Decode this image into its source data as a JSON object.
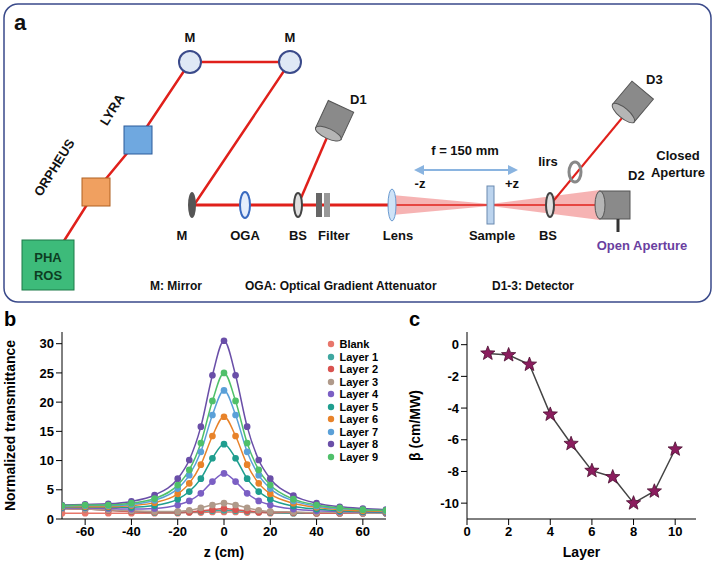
{
  "diagram": {
    "panel": "a",
    "pharos": [
      "PHA",
      "ROS"
    ],
    "orpheus": "ORPHEUS",
    "lyra": "LYRA",
    "mirrors": [
      "M",
      "M",
      "M"
    ],
    "oga": "OGA",
    "splitters": [
      "BS",
      "BS"
    ],
    "filter": "Filter",
    "lens": "Lens",
    "sample": "Sample",
    "iris": "Iirs",
    "detectors": [
      "D1",
      "D2",
      "D3"
    ],
    "focal": "f = 150 mm",
    "minus_z": "-z",
    "plus_z": "+z",
    "closed": [
      "Closed",
      "Aperture"
    ],
    "open": "Open Aperture",
    "key": [
      "M: Mirror",
      "OGA: Optical Gradient Attenuator",
      "D1-3: Detector"
    ]
  },
  "chart_data": [
    {
      "type": "line",
      "panel": "b",
      "x": [
        -70,
        -60,
        -50,
        -40,
        -30,
        -20,
        -15,
        -10,
        -5,
        0,
        5,
        10,
        15,
        20,
        30,
        40,
        50,
        60,
        70
      ],
      "series": [
        {
          "name": "Blank",
          "color": "#e8766b",
          "values": [
            1.0,
            1.0,
            1.0,
            1.0,
            1.0,
            1.0,
            1.1,
            1.1,
            1.2,
            1.2,
            1.2,
            1.1,
            1.1,
            1.0,
            1.0,
            1.0,
            1.0,
            1.0,
            1.0
          ]
        },
        {
          "name": "Layer 1",
          "color": "#3fa7a0",
          "values": [
            1.8,
            1.7,
            1.5,
            1.3,
            1.1,
            1.1,
            1.2,
            1.3,
            1.4,
            1.5,
            1.4,
            1.3,
            1.2,
            1.1,
            1.0,
            1.0,
            1.0,
            1.0,
            1.0
          ]
        },
        {
          "name": "Layer 2",
          "color": "#d9534f",
          "values": [
            1.8,
            1.7,
            1.5,
            1.3,
            1.2,
            1.2,
            1.2,
            1.4,
            1.6,
            1.8,
            1.6,
            1.4,
            1.2,
            1.2,
            1.1,
            1.0,
            1.0,
            1.0,
            1.0
          ]
        },
        {
          "name": "Layer 3",
          "color": "#b09a8a",
          "values": [
            1.8,
            1.7,
            1.6,
            1.4,
            1.3,
            1.3,
            1.5,
            1.9,
            2.4,
            2.7,
            2.4,
            1.9,
            1.5,
            1.3,
            1.2,
            1.1,
            1.1,
            1.0,
            1.0
          ]
        },
        {
          "name": "Layer 4",
          "color": "#7b5fc4",
          "values": [
            1.9,
            1.9,
            1.8,
            1.7,
            1.8,
            2.4,
            3.1,
            4.4,
            6.4,
            7.8,
            6.4,
            4.4,
            3.1,
            2.4,
            1.7,
            1.4,
            1.3,
            1.2,
            1.1
          ]
        },
        {
          "name": "Layer 5",
          "color": "#1f9e8f",
          "values": [
            2.0,
            2.0,
            2.0,
            2.0,
            2.3,
            3.4,
            4.7,
            6.9,
            10.4,
            12.8,
            10.4,
            6.9,
            4.7,
            3.4,
            2.2,
            1.7,
            1.4,
            1.3,
            1.2
          ]
        },
        {
          "name": "Layer 6",
          "color": "#e8832a",
          "values": [
            2.1,
            2.1,
            2.1,
            2.3,
            2.8,
            4.3,
            6.1,
            9.3,
            14.2,
            17.5,
            14.2,
            9.3,
            6.1,
            4.3,
            2.7,
            2.0,
            1.6,
            1.4,
            1.3
          ]
        },
        {
          "name": "Layer 7",
          "color": "#5aa0d8",
          "values": [
            2.2,
            2.3,
            2.3,
            2.5,
            3.2,
            5.2,
            7.5,
            11.5,
            17.8,
            22.0,
            17.8,
            11.5,
            7.5,
            5.2,
            3.1,
            2.2,
            1.8,
            1.6,
            1.4
          ]
        },
        {
          "name": "Layer 8",
          "color": "#6a4fa8",
          "values": [
            2.4,
            2.5,
            2.6,
            3.0,
            4.1,
            6.9,
            10.1,
            15.8,
            24.6,
            30.5,
            24.6,
            15.8,
            10.1,
            6.9,
            4.0,
            2.7,
            2.1,
            1.8,
            1.6
          ]
        },
        {
          "name": "Layer 9",
          "color": "#4fc06a",
          "values": [
            2.3,
            2.4,
            2.4,
            2.7,
            3.5,
            5.8,
            8.4,
            13.0,
            20.2,
            25.0,
            20.2,
            13.0,
            8.4,
            5.8,
            3.4,
            2.4,
            1.9,
            1.6,
            1.5
          ]
        }
      ],
      "xlim": [
        -70,
        70
      ],
      "xticks": [
        -60,
        -40,
        -20,
        0,
        20,
        40,
        60
      ],
      "ylim": [
        0,
        32
      ],
      "yticks": [
        0,
        5,
        10,
        15,
        20,
        25,
        30
      ],
      "xlabel": "z (cm)",
      "ylabel": "Normalized transmittance",
      "marker": "circle",
      "legend": "upper right"
    },
    {
      "type": "line",
      "panel": "c",
      "x": [
        1,
        2,
        3,
        4,
        5,
        6,
        7,
        8,
        9,
        10
      ],
      "values": [
        -0.55,
        -0.65,
        -1.25,
        -4.4,
        -6.25,
        -7.95,
        -8.35,
        -10.0,
        -9.25,
        -6.6
      ],
      "color": "#8b1d5e",
      "marker": "star",
      "xlim": [
        0,
        11
      ],
      "xticks": [
        0,
        2,
        4,
        6,
        8,
        10
      ],
      "ylim": [
        -11,
        0.8
      ],
      "yticks": [
        -10,
        -8,
        -6,
        -4,
        -2,
        0
      ],
      "xlabel": "Layer",
      "ylabel": "β (cm/MW)"
    }
  ]
}
